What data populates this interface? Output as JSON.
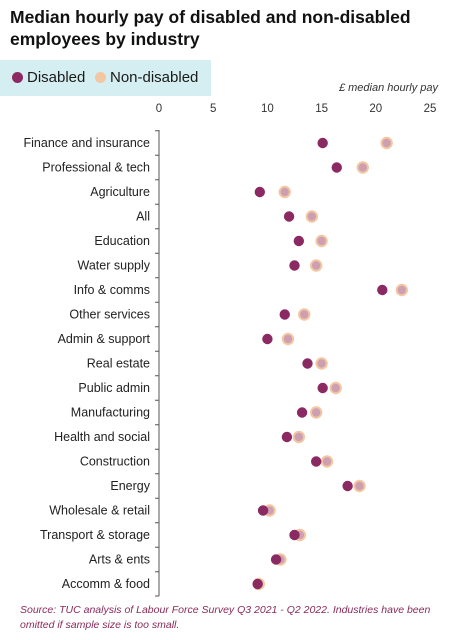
{
  "title": "Median hourly pay of disabled and non-disabled employees by industry",
  "legend": {
    "disabled": "Disabled",
    "non_disabled": "Non-disabled"
  },
  "unit_label": "£ median hourly pay",
  "source": "Source: TUC analysis of Labour Force Survey Q3 2021 - Q2 2022. Industries have been omitted if sample size is too small.",
  "colors": {
    "disabled": "#8b2a62",
    "non_disabled": "#f2c7a2",
    "legend_bg": "#d5eef2"
  },
  "chart_data": {
    "type": "scatter",
    "orientation": "horizontal",
    "xlim": [
      0,
      25
    ],
    "x_ticks": [
      0,
      5,
      10,
      15,
      20,
      25
    ],
    "categories": [
      "Finance and insurance",
      "Professional & tech",
      "Agriculture",
      "All",
      "Education",
      "Water supply",
      "Info & comms",
      "Other services",
      "Admin & support",
      "Real estate",
      "Public admin",
      "Manufacturing",
      "Health and social",
      "Construction",
      "Energy",
      "Wholesale & retail",
      "Transport & storage",
      "Arts & ents",
      "Accomm & food"
    ],
    "series": [
      {
        "name": "Disabled",
        "values": [
          15.1,
          16.4,
          9.3,
          12.0,
          12.9,
          12.5,
          20.6,
          11.6,
          10.0,
          13.7,
          15.1,
          13.2,
          11.8,
          14.5,
          17.4,
          9.6,
          12.5,
          10.8,
          9.1
        ]
      },
      {
        "name": "Non-disabled",
        "values": [
          21.0,
          18.8,
          11.6,
          14.1,
          15.0,
          14.5,
          22.4,
          13.4,
          11.9,
          15.0,
          16.3,
          14.5,
          12.9,
          15.5,
          18.5,
          10.2,
          13.0,
          11.2,
          9.2
        ]
      }
    ],
    "grid": false
  }
}
